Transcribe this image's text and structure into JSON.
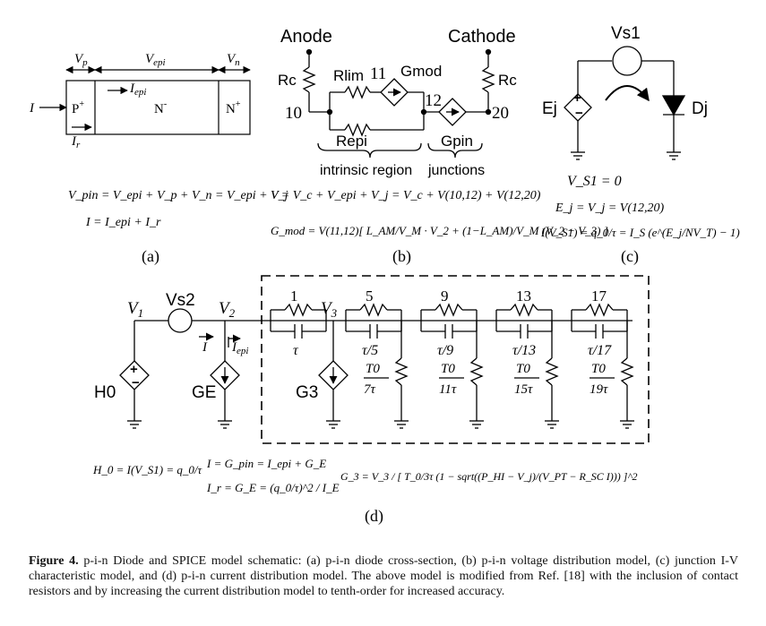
{
  "panel_a": {
    "label_Vp": "V",
    "label_Vp_sub": "p",
    "label_Vepi": "V",
    "label_Vepi_sub": "epi",
    "label_Vn": "V",
    "label_Vn_sub": "n",
    "label_I": "I",
    "label_Iepi": "I",
    "label_Iepi_sub": "epi",
    "label_Ir": "I",
    "label_Ir_sub": "r",
    "region_p": "P",
    "region_p_sup": "+",
    "region_n": "N",
    "region_n_sup": "-",
    "region_np": "N",
    "region_np_sup": "+",
    "eq1": "V_pin = V_epi + V_p + V_n = V_epi + V_j",
    "eq2": "I = I_epi + I_r",
    "caption_label": "(a)"
  },
  "panel_b": {
    "anode": "Anode",
    "cathode": "Cathode",
    "rc_left": "Rc",
    "rc_right": "Rc",
    "rlim": "Rlim",
    "node11": "11",
    "gmod": "Gmod",
    "node12": "12",
    "node10": "10",
    "node20": "20",
    "repi": "Repi",
    "gpin": "Gpin",
    "intrinsic": "intrinsic region",
    "junctions": "junctions",
    "eq1": "V = V_c + V_epi + V_j = V_c + V(10,12) + V(12,20)",
    "eq2": "G_mod = V(11,12)[ L_AM/V_M · V_2 + (1−L_AM)/V_M (V_2 − V_3) ]",
    "caption_label": "(b)"
  },
  "panel_c": {
    "vs1": "Vs1",
    "ej": "Ej",
    "dj": "Dj",
    "eq1": "V_S1 = 0",
    "eq2": "E_j = V_j = V(12,20)",
    "eq3": "I(V_S1) = q_0/τ = I_S (e^(E_j/NV_T) − 1)",
    "caption_label": "(c)"
  },
  "panel_d": {
    "v1": "V",
    "v1_sub": "1",
    "vs2": "Vs2",
    "v2": "V",
    "v2_sub": "2",
    "v3": "V",
    "v3_sub": "3",
    "i_label": "I",
    "iepi": "I",
    "iepi_sub": "epi",
    "h0": "H0",
    "ge": "GE",
    "g3": "G3",
    "stages": [
      {
        "n": "1",
        "cap": "τ"
      },
      {
        "n": "5",
        "cap": "τ/5"
      },
      {
        "n": "9",
        "cap": "τ/9"
      },
      {
        "n": "13",
        "cap": "τ/13"
      },
      {
        "n": "17",
        "cap": "τ/17"
      }
    ],
    "shunts": [
      {
        "num": "T0",
        "den": "7τ"
      },
      {
        "num": "T0",
        "den": "11τ"
      },
      {
        "num": "T0",
        "den": "15τ"
      },
      {
        "num": "T0",
        "den": "19τ"
      }
    ],
    "eq1": "H_0 = I(V_S1) = q_0/τ",
    "eq2": "I = G_pin = I_epi + G_E",
    "eq3": "I_r = G_E = (q_0/τ)^2 / I_E",
    "eq4": "G_3 = V_3 / [ T_0/3τ (1 − sqrt((P_HI − V_j)/(V_PT − R_SC I))) ]^2",
    "caption_label": "(d)"
  },
  "caption": {
    "bold": "Figure 4.",
    "text": " p-i-n Diode and SPICE model schematic: (a) p-i-n diode cross-section, (b) p-i-n voltage distribution model, (c) junction I-V characteristic model, and (d) p-i-n current distribution model. The above model is modified from Ref. [18] with the inclusion of contact resistors and by increasing the current distribution model to tenth-order for increased accuracy."
  }
}
